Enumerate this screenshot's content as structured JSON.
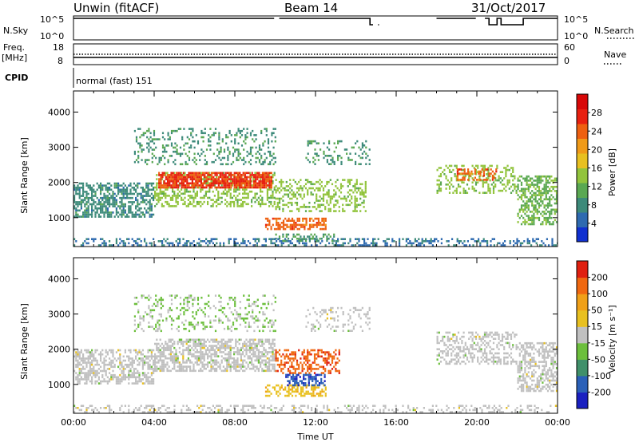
{
  "header": {
    "station": "Unwin (fitACF)",
    "beam": "Beam 14",
    "date": "31/Oct/2017"
  },
  "strip": {
    "nsky_label": "N.Sky",
    "nsearch_label": "N.Search",
    "nsky_ticks": [
      "10^5",
      "10^0"
    ],
    "nsearch_ticks": [
      "10^5",
      "10^0"
    ],
    "freq_label": "Freq.",
    "freq_unit": "[MHz]",
    "freq_ticks": [
      "18",
      "8"
    ],
    "nave_label": "Nave",
    "nave_ticks": [
      "60",
      "0"
    ],
    "cpid_label": "CPID",
    "cpid_text": "normal (fast) 151",
    "nsky_gaps": [
      {
        "start": 10.0,
        "end": 10.2
      },
      {
        "start": 14.9,
        "end": 15.1
      },
      {
        "start": 15.2,
        "end": 18.0
      },
      {
        "start": 20.0,
        "end": 20.4
      }
    ],
    "nsky_dips": [
      {
        "start": 0.55,
        "end": 0.6
      },
      {
        "start": 14.7,
        "end": 16.1
      },
      {
        "start": 16.2,
        "end": 16.9
      },
      {
        "start": 17.0,
        "end": 17.6
      },
      {
        "start": 20.6,
        "end": 21.0
      },
      {
        "start": 21.2,
        "end": 22.3
      }
    ]
  },
  "chart_data": [
    {
      "type": "heatmap",
      "title": "",
      "xlabel": "",
      "ylabel": "Slant Range [km]",
      "xlim": [
        0,
        24
      ],
      "ylim": [
        180,
        4600
      ],
      "yticks": [
        "1000",
        "2000",
        "3000",
        "4000"
      ],
      "colorbar": {
        "label": "Power [dB]",
        "ticks": [
          "4",
          "8",
          "12",
          "16",
          "20",
          "24",
          "28"
        ],
        "colors": [
          "#1030d0",
          "#2e6ab0",
          "#3d8a7a",
          "#5aa852",
          "#92c43c",
          "#e8c020",
          "#f09a18",
          "#ee6010",
          "#e82010",
          "#d80808"
        ],
        "range": [
          0,
          32
        ]
      },
      "regions": [
        {
          "x0": 0.0,
          "x1": 24.0,
          "y0": 220,
          "y1": 420,
          "value": 6,
          "density": 0.35
        },
        {
          "x0": 0.0,
          "x1": 4.0,
          "y0": 1000,
          "y1": 2000,
          "value": 8,
          "density": 0.55
        },
        {
          "x0": 4.0,
          "x1": 10.0,
          "y0": 1300,
          "y1": 2300,
          "value": 14,
          "density": 0.45
        },
        {
          "x0": 4.2,
          "x1": 9.8,
          "y0": 1850,
          "y1": 2300,
          "value": 26,
          "density": 0.85
        },
        {
          "x0": 3.0,
          "x1": 10.0,
          "y0": 2500,
          "y1": 3550,
          "value": 9,
          "density": 0.25
        },
        {
          "x0": 9.5,
          "x1": 12.5,
          "y0": 700,
          "y1": 1000,
          "value": 24,
          "density": 0.6
        },
        {
          "x0": 10.0,
          "x1": 14.5,
          "y0": 1200,
          "y1": 2100,
          "value": 14,
          "density": 0.35
        },
        {
          "x0": 11.5,
          "x1": 14.7,
          "y0": 2500,
          "y1": 3200,
          "value": 9,
          "density": 0.22
        },
        {
          "x0": 10.0,
          "x1": 13.0,
          "y0": 350,
          "y1": 550,
          "value": 10,
          "density": 0.3
        },
        {
          "x0": 18.0,
          "x1": 22.0,
          "y0": 1700,
          "y1": 2500,
          "value": 14,
          "density": 0.4
        },
        {
          "x0": 19.0,
          "x1": 21.0,
          "y0": 2100,
          "y1": 2400,
          "value": 24,
          "density": 0.5
        },
        {
          "x0": 22.0,
          "x1": 24.0,
          "y0": 800,
          "y1": 2200,
          "value": 12,
          "density": 0.55
        }
      ]
    },
    {
      "type": "heatmap",
      "title": "",
      "xlabel": "Time UT",
      "ylabel": "Slant Range [km]",
      "xlim": [
        0,
        24
      ],
      "ylim": [
        180,
        4600
      ],
      "xticks": [
        "00:00",
        "04:00",
        "08:00",
        "12:00",
        "16:00",
        "20:00",
        "00:00"
      ],
      "yticks": [
        "1000",
        "2000",
        "3000",
        "4000"
      ],
      "colorbar": {
        "label": "Velocity [m s⁻¹]",
        "ticks": [
          "200",
          "100",
          "50",
          "15",
          "-15",
          "-50",
          "-100",
          "-200"
        ],
        "colors": [
          "#1a20c0",
          "#2a60b8",
          "#40906a",
          "#6cbf3c",
          "#c0c0c0",
          "#e8c020",
          "#f0a018",
          "#f06810",
          "#e02010"
        ],
        "range": [
          -250,
          250
        ]
      },
      "regions": [
        {
          "x0": 0.0,
          "x1": 24.0,
          "y0": 220,
          "y1": 420,
          "value": 0,
          "density": 0.3
        },
        {
          "x0": 0.0,
          "x1": 4.0,
          "y0": 1000,
          "y1": 2000,
          "value": 0,
          "density": 0.55
        },
        {
          "x0": 4.0,
          "x1": 10.0,
          "y0": 1400,
          "y1": 2300,
          "value": 0,
          "density": 0.6
        },
        {
          "x0": 3.0,
          "x1": 10.0,
          "y0": 2500,
          "y1": 3550,
          "value": -30,
          "density": 0.2
        },
        {
          "x0": 9.5,
          "x1": 12.5,
          "y0": 700,
          "y1": 1000,
          "value": 60,
          "density": 0.55
        },
        {
          "x0": 10.0,
          "x1": 13.2,
          "y0": 1300,
          "y1": 2000,
          "value": 180,
          "density": 0.45
        },
        {
          "x0": 10.5,
          "x1": 12.5,
          "y0": 1000,
          "y1": 1300,
          "value": -180,
          "density": 0.55
        },
        {
          "x0": 11.5,
          "x1": 14.7,
          "y0": 2500,
          "y1": 3200,
          "value": 0,
          "density": 0.2
        },
        {
          "x0": 18.0,
          "x1": 22.0,
          "y0": 1600,
          "y1": 2500,
          "value": 0,
          "density": 0.4
        },
        {
          "x0": 22.0,
          "x1": 24.0,
          "y0": 800,
          "y1": 2200,
          "value": 0,
          "density": 0.55
        }
      ]
    }
  ]
}
